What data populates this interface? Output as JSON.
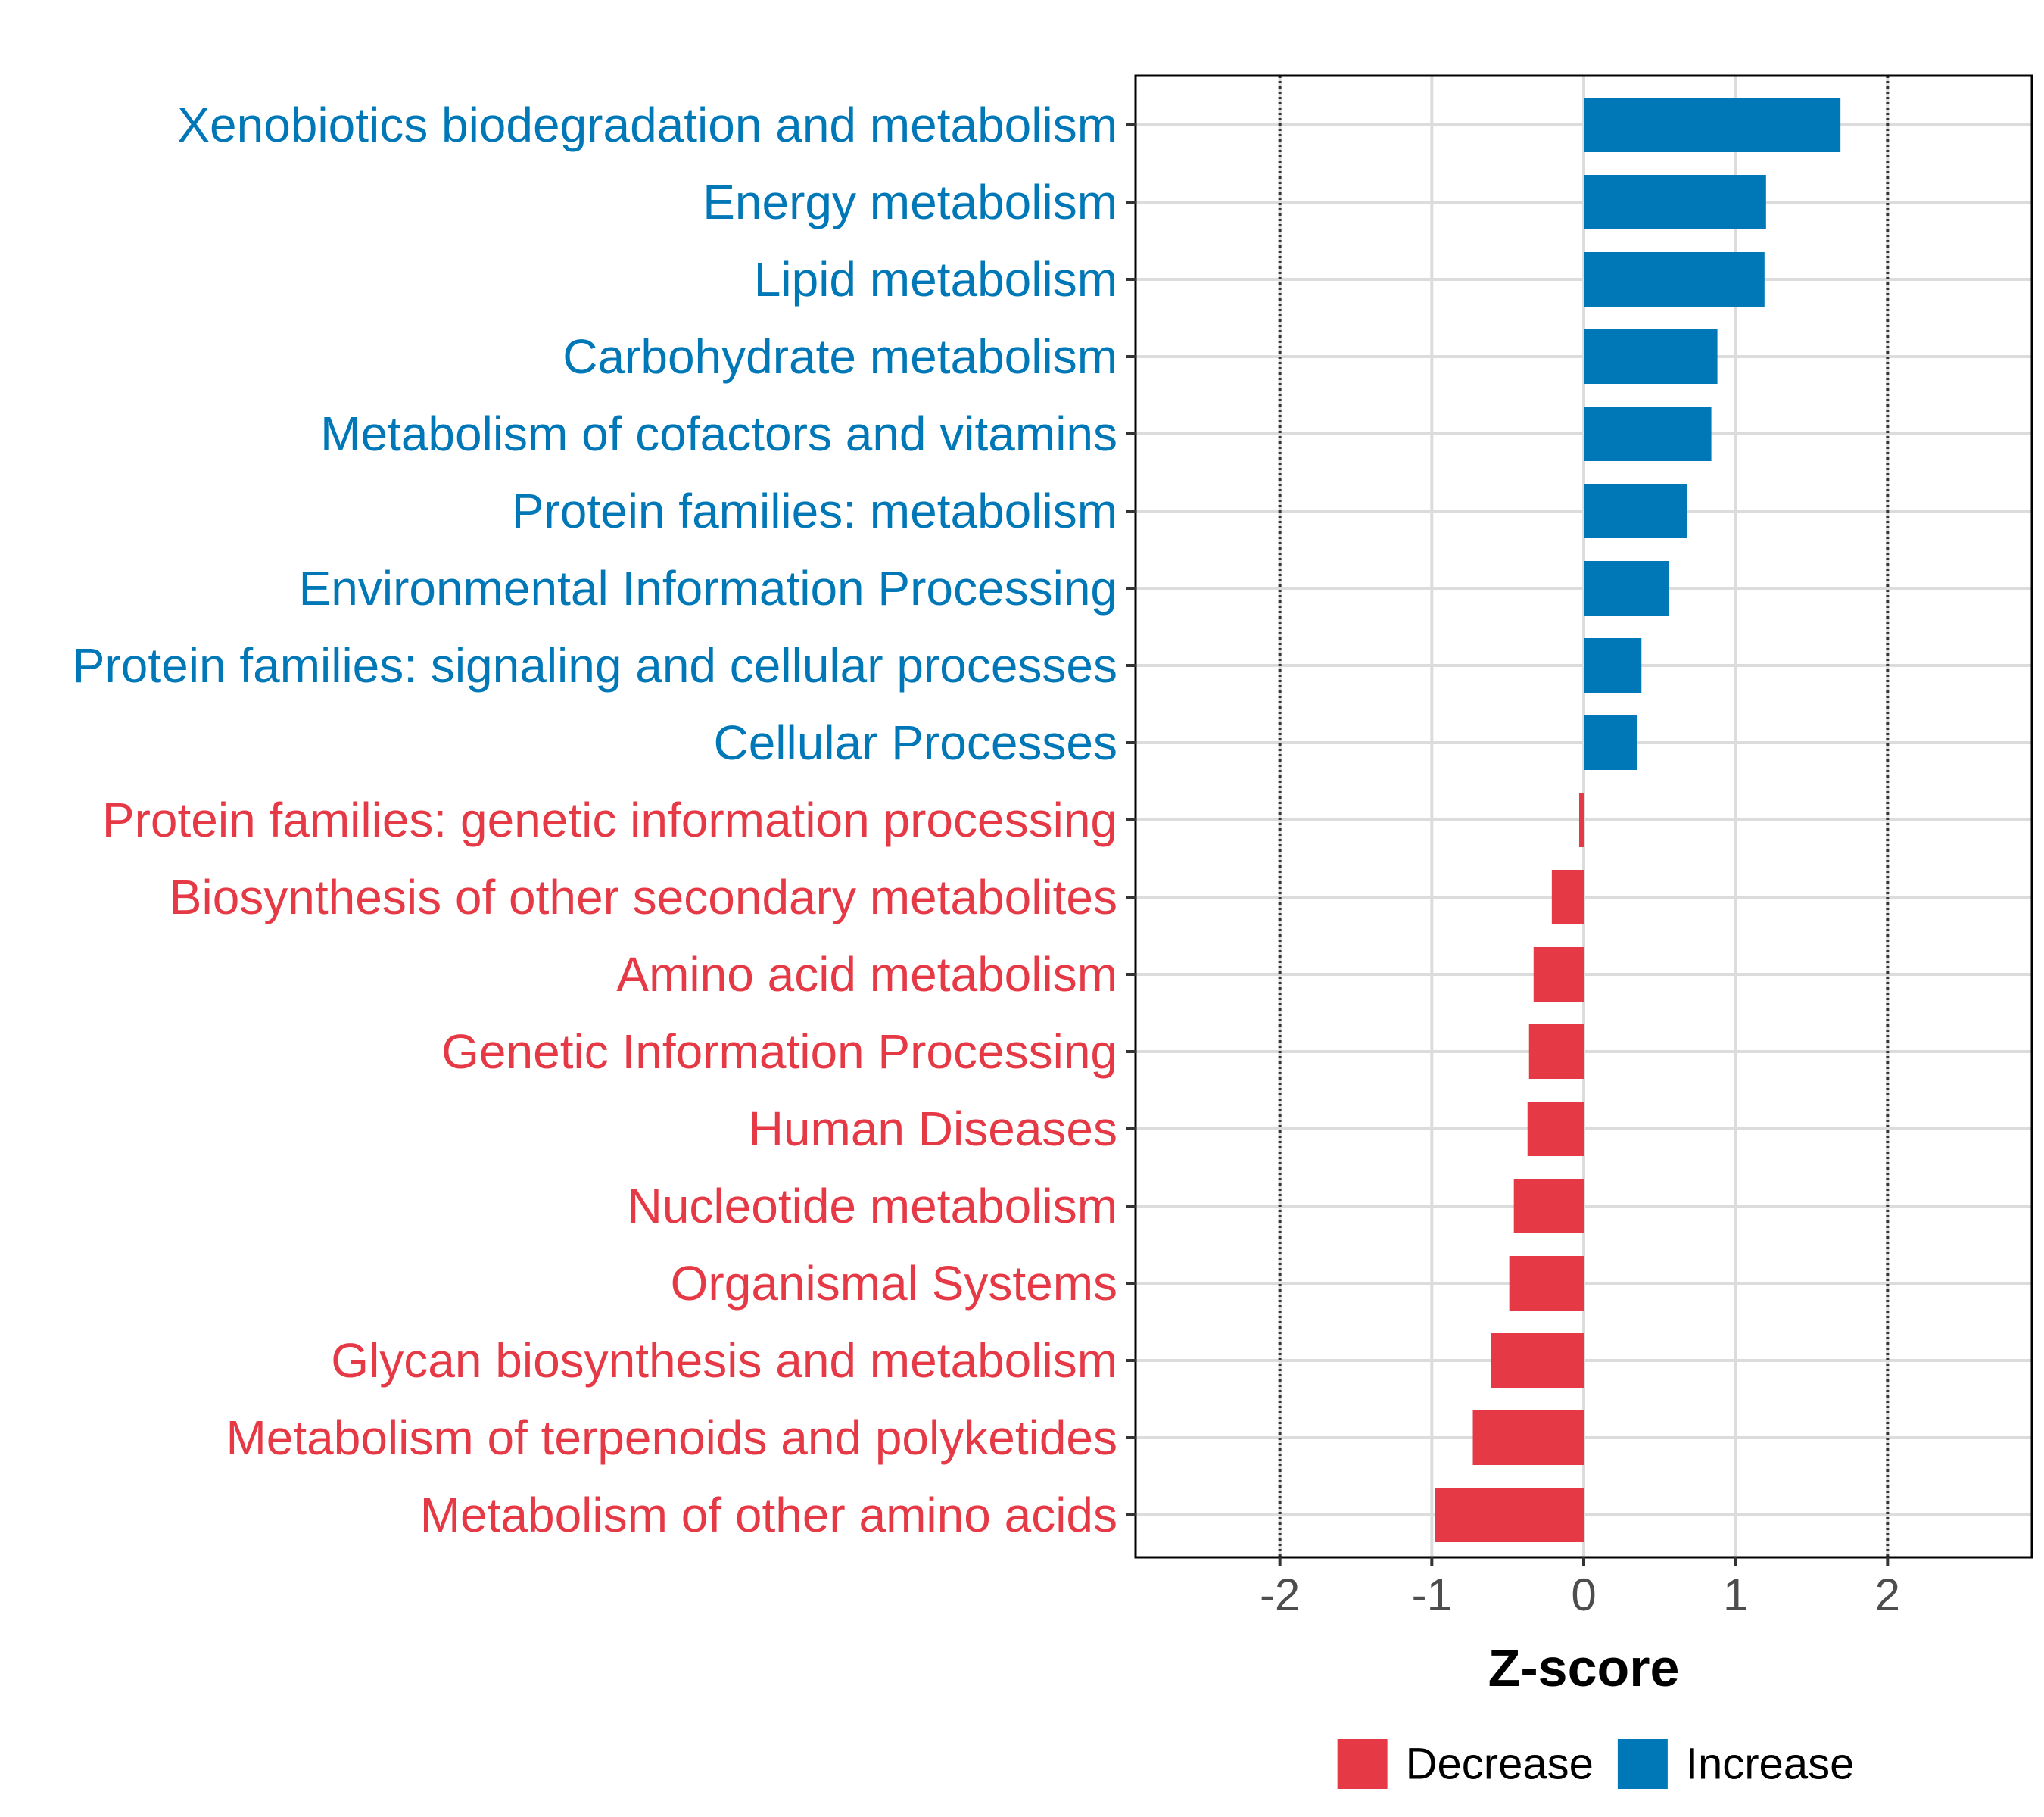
{
  "chart_data": {
    "type": "bar",
    "orientation": "horizontal",
    "categories": [
      "Xenobiotics biodegradation and metabolism",
      "Energy metabolism",
      "Lipid metabolism",
      "Carbohydrate metabolism",
      "Metabolism of cofactors and vitamins",
      "Protein families: metabolism",
      "Environmental Information Processing",
      "Protein families: signaling and cellular processes",
      "Cellular Processes",
      "Protein families: genetic information processing",
      "Biosynthesis of other secondary metabolites",
      "Amino acid metabolism",
      "Genetic Information Processing",
      "Human Diseases",
      "Nucleotide metabolism",
      "Organismal Systems",
      "Glycan biosynthesis and metabolism",
      "Metabolism of terpenoids and polyketides",
      "Metabolism of other amino acids"
    ],
    "values": [
      1.69,
      1.2,
      1.19,
      0.88,
      0.84,
      0.68,
      0.56,
      0.38,
      0.35,
      -0.03,
      -0.21,
      -0.33,
      -0.36,
      -0.37,
      -0.46,
      -0.49,
      -0.61,
      -0.73,
      -0.98
    ],
    "groups": [
      "Increase",
      "Increase",
      "Increase",
      "Increase",
      "Increase",
      "Increase",
      "Increase",
      "Increase",
      "Increase",
      "Decrease",
      "Decrease",
      "Decrease",
      "Decrease",
      "Decrease",
      "Decrease",
      "Decrease",
      "Decrease",
      "Decrease",
      "Decrease"
    ],
    "xlabel": "Z-score",
    "ylabel": "",
    "xlim": [
      -2.95,
      2.95
    ],
    "xticks": [
      -2,
      -1,
      0,
      1,
      2
    ],
    "xtick_labels": [
      "-2",
      "-1",
      "0",
      "1",
      "2"
    ],
    "reference_lines": [
      -2,
      2
    ],
    "grid": true,
    "legend": {
      "position": "bottom",
      "entries": [
        {
          "name": "Decrease",
          "color": "#E63946"
        },
        {
          "name": "Increase",
          "color": "#0077B6"
        }
      ]
    },
    "colors": {
      "Increase": "#0077B6",
      "Decrease": "#E63946"
    }
  }
}
